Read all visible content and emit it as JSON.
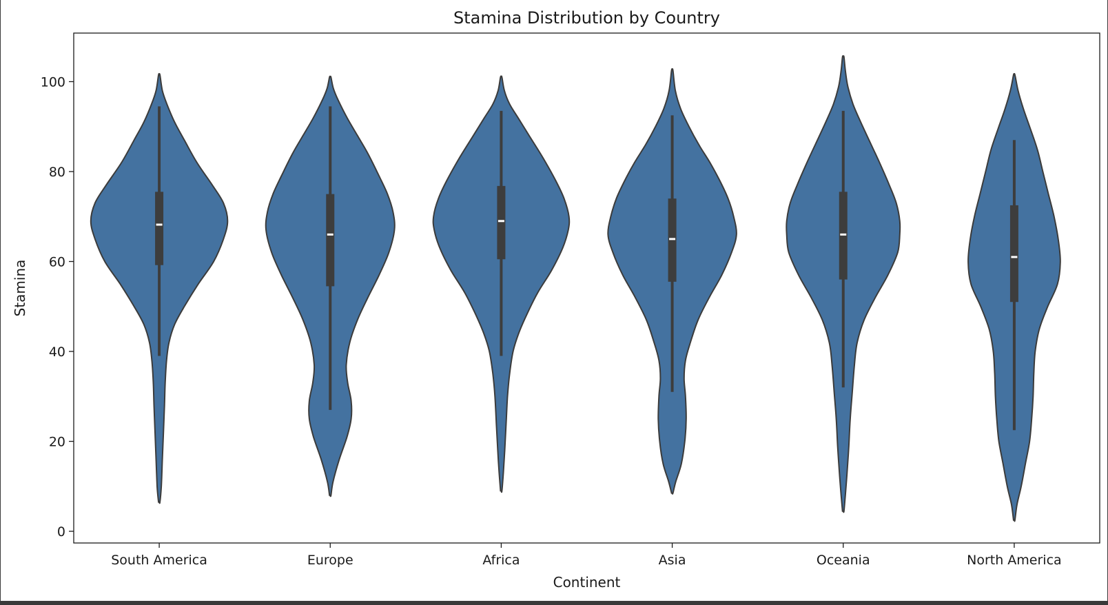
{
  "chart_data": {
    "type": "violin",
    "title": "Stamina Distribution by Country",
    "xlabel": "Continent",
    "ylabel": "Stamina",
    "ylim": [
      -2.6,
      110.8
    ],
    "yticks": [
      0,
      20,
      40,
      60,
      80,
      100
    ],
    "grid": false,
    "fill_color": "#4472a0",
    "edge_color": "#3b3b3b",
    "box_color": "#3d3d3d",
    "median_color": "#ffffff",
    "categories": [
      "South America",
      "Europe",
      "Africa",
      "Asia",
      "Oceania",
      "North America"
    ],
    "series": [
      {
        "category": "South America",
        "min": 39,
        "q1": 59.2,
        "median": 68.2,
        "q3": 75.5,
        "max": 94.5,
        "kde_min": 6.5,
        "kde_max": 101.5,
        "density": [
          [
            6.5,
            0.1
          ],
          [
            10,
            0.3
          ],
          [
            16,
            0.45
          ],
          [
            22,
            0.6
          ],
          [
            28,
            0.75
          ],
          [
            33,
            0.85
          ],
          [
            38,
            1.05
          ],
          [
            42,
            1.4
          ],
          [
            46,
            2.2
          ],
          [
            50,
            3.6
          ],
          [
            55,
            5.6
          ],
          [
            60,
            7.8
          ],
          [
            65,
            9.2
          ],
          [
            69,
            9.8
          ],
          [
            73,
            9.2
          ],
          [
            77,
            7.6
          ],
          [
            82,
            5.4
          ],
          [
            87,
            3.6
          ],
          [
            91,
            2.2
          ],
          [
            95,
            1.1
          ],
          [
            98,
            0.45
          ],
          [
            101.5,
            0.1
          ]
        ]
      },
      {
        "category": "Europe",
        "min": 27,
        "q1": 54.5,
        "median": 66,
        "q3": 75,
        "max": 94.5,
        "kde_min": 8,
        "kde_max": 101,
        "density": [
          [
            8,
            0.1
          ],
          [
            11,
            0.4
          ],
          [
            16,
            1.3
          ],
          [
            21,
            2.4
          ],
          [
            25,
            3.0
          ],
          [
            29,
            3.0
          ],
          [
            33,
            2.5
          ],
          [
            37,
            2.3
          ],
          [
            42,
            2.8
          ],
          [
            47,
            3.9
          ],
          [
            52,
            5.4
          ],
          [
            57,
            7.0
          ],
          [
            62,
            8.4
          ],
          [
            67,
            9.2
          ],
          [
            71,
            9.0
          ],
          [
            75,
            8.2
          ],
          [
            79,
            7.0
          ],
          [
            84,
            5.4
          ],
          [
            88,
            3.9
          ],
          [
            92,
            2.4
          ],
          [
            96,
            1.1
          ],
          [
            98.5,
            0.45
          ],
          [
            101,
            0.1
          ]
        ]
      },
      {
        "category": "Africa",
        "min": 39,
        "q1": 60.5,
        "median": 69,
        "q3": 76.8,
        "max": 93.5,
        "kde_min": 9,
        "kde_max": 101,
        "density": [
          [
            9,
            0.1
          ],
          [
            13,
            0.3
          ],
          [
            18,
            0.5
          ],
          [
            24,
            0.7
          ],
          [
            30,
            0.9
          ],
          [
            35,
            1.2
          ],
          [
            40,
            1.7
          ],
          [
            44,
            2.5
          ],
          [
            48,
            3.6
          ],
          [
            53,
            5.2
          ],
          [
            58,
            7.2
          ],
          [
            63,
            8.8
          ],
          [
            67,
            9.6
          ],
          [
            70,
            9.7
          ],
          [
            74,
            9.0
          ],
          [
            78,
            7.8
          ],
          [
            83,
            6.0
          ],
          [
            88,
            4.0
          ],
          [
            92,
            2.4
          ],
          [
            95,
            1.2
          ],
          [
            98,
            0.45
          ],
          [
            101,
            0.1
          ]
        ]
      },
      {
        "category": "Asia",
        "min": 31,
        "q1": 55.5,
        "median": 65,
        "q3": 74,
        "max": 92.5,
        "kde_min": 8.5,
        "kde_max": 102.5,
        "density": [
          [
            8.5,
            0.1
          ],
          [
            11,
            0.5
          ],
          [
            15,
            1.3
          ],
          [
            20,
            1.8
          ],
          [
            25,
            2.0
          ],
          [
            30,
            1.9
          ],
          [
            34,
            1.7
          ],
          [
            38,
            1.9
          ],
          [
            42,
            2.6
          ],
          [
            47,
            3.7
          ],
          [
            52,
            5.3
          ],
          [
            57,
            7.1
          ],
          [
            62,
            8.5
          ],
          [
            66,
            9.2
          ],
          [
            70,
            8.8
          ],
          [
            74,
            8.0
          ],
          [
            78,
            6.8
          ],
          [
            82,
            5.4
          ],
          [
            86,
            3.8
          ],
          [
            90,
            2.4
          ],
          [
            94,
            1.2
          ],
          [
            98,
            0.45
          ],
          [
            102.5,
            0.1
          ]
        ]
      },
      {
        "category": "Oceania",
        "min": 32,
        "q1": 56,
        "median": 66,
        "q3": 75.5,
        "max": 93.5,
        "kde_min": 4.5,
        "kde_max": 105.5,
        "density": [
          [
            4.5,
            0.1
          ],
          [
            8,
            0.3
          ],
          [
            13,
            0.55
          ],
          [
            19,
            0.8
          ],
          [
            25,
            1.0
          ],
          [
            31,
            1.3
          ],
          [
            37,
            1.6
          ],
          [
            42,
            2.0
          ],
          [
            47,
            3.0
          ],
          [
            52,
            4.6
          ],
          [
            57,
            6.4
          ],
          [
            62,
            7.8
          ],
          [
            66,
            8.1
          ],
          [
            69,
            8.1
          ],
          [
            73,
            7.6
          ],
          [
            77,
            6.6
          ],
          [
            82,
            5.2
          ],
          [
            87,
            3.7
          ],
          [
            91,
            2.5
          ],
          [
            95,
            1.4
          ],
          [
            99,
            0.65
          ],
          [
            102.5,
            0.3
          ],
          [
            105.5,
            0.1
          ]
        ]
      },
      {
        "category": "North America",
        "min": 22.5,
        "q1": 51,
        "median": 61,
        "q3": 72.5,
        "max": 87,
        "kde_min": 2.5,
        "kde_max": 101.5,
        "density": [
          [
            2.5,
            0.1
          ],
          [
            6,
            0.4
          ],
          [
            10,
            1.0
          ],
          [
            15,
            1.6
          ],
          [
            20,
            2.2
          ],
          [
            25,
            2.5
          ],
          [
            30,
            2.7
          ],
          [
            35,
            2.8
          ],
          [
            40,
            3.0
          ],
          [
            45,
            3.6
          ],
          [
            50,
            4.8
          ],
          [
            55,
            6.2
          ],
          [
            60,
            6.6
          ],
          [
            65,
            6.3
          ],
          [
            70,
            5.7
          ],
          [
            75,
            4.9
          ],
          [
            80,
            4.1
          ],
          [
            85,
            3.3
          ],
          [
            90,
            2.2
          ],
          [
            94,
            1.3
          ],
          [
            98,
            0.55
          ],
          [
            101.5,
            0.1
          ]
        ]
      }
    ]
  }
}
